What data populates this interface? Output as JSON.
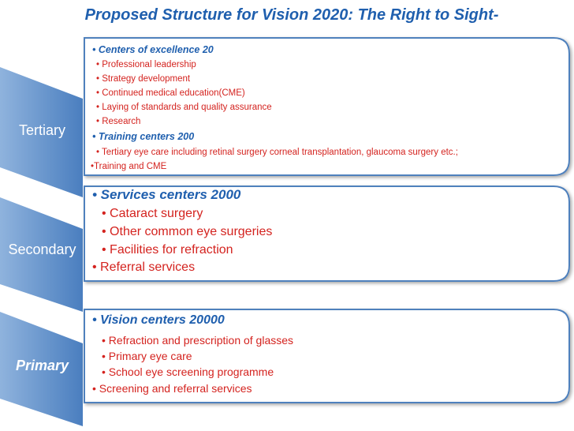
{
  "title": "Proposed Structure for Vision 2020: The Right to Sight-",
  "levels": [
    {
      "label": "Tertiary",
      "items": [
        "• Centers of excellence 20",
        "• Professional leadership",
        "• Strategy development",
        "• Continued medical education(CME)",
        "• Laying of standards and  quality assurance",
        "• Research",
        "• Training centers 200",
        "• Tertiary eye care including retinal surgery corneal transplantation, glaucoma surgery etc.;",
        "•Training and CME"
      ]
    },
    {
      "label": "Secondary",
      "items": [
        "• Services centers 2000",
        "• Cataract surgery",
        "• Other common eye surgeries",
        "• Facilities for refraction",
        "• Referral services"
      ]
    },
    {
      "label": "Primary",
      "items": [
        "• Vision centers 20000",
        "• Refraction and prescription of glasses",
        "• Primary eye care",
        "• School eye screening programme",
        "• Screening and referral services"
      ]
    }
  ]
}
